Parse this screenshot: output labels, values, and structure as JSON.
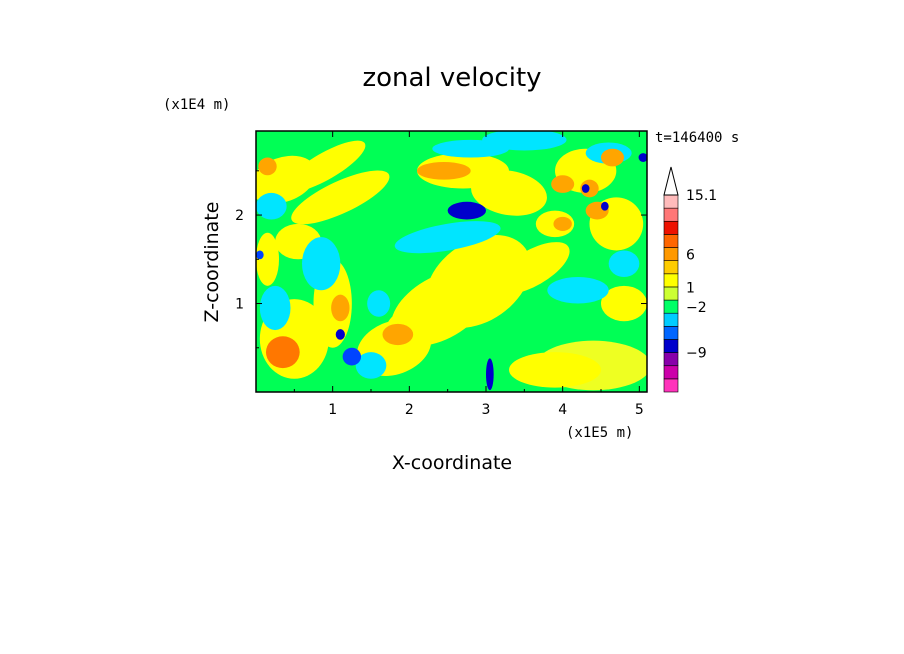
{
  "chart_data": {
    "type": "heatmap",
    "title": "zonal velocity",
    "xlabel": "X-coordinate",
    "ylabel": "Z-coordinate",
    "x_unit": "(x1E5 m)",
    "y_unit": "(x1E4 m)",
    "time_label": "t=146400 s",
    "xlim": [
      0.0,
      5.1
    ],
    "ylim": [
      0.0,
      2.95
    ],
    "x_ticks": [
      1,
      2,
      3,
      4,
      5
    ],
    "y_ticks": [
      1,
      2
    ],
    "colorbar": {
      "levels": [
        {
          "color": "#ff33bb"
        },
        {
          "color": "#cc00aa"
        },
        {
          "color": "#8800aa"
        },
        {
          "color": "#0000cc"
        },
        {
          "color": "#0066ff"
        },
        {
          "color": "#00ccff"
        },
        {
          "color": "#00ff66"
        },
        {
          "color": "#ccff33"
        },
        {
          "color": "#ffff00"
        },
        {
          "color": "#ffcc00"
        },
        {
          "color": "#ff9900"
        },
        {
          "color": "#ff6600"
        },
        {
          "color": "#ee1100"
        },
        {
          "color": "#ff7777"
        },
        {
          "color": "#ffbbbb"
        }
      ],
      "labels": [
        {
          "text": "15.1",
          "value": 15.1
        },
        {
          "text": "6",
          "value": 6
        },
        {
          "text": "1",
          "value": 1
        },
        {
          "text": "−2",
          "value": -2
        },
        {
          "text": "−9",
          "value": -9
        }
      ]
    },
    "field_colors": {
      "background": "#00ff55",
      "yellow": "#ffff00",
      "light_yellow": "#eeff22",
      "orange": "#ffa500",
      "dark_orange": "#ff7700",
      "cyan": "#00e5ff",
      "blue": "#0044ff",
      "navy": "#0000cc",
      "magenta": "#cc00cc"
    }
  }
}
